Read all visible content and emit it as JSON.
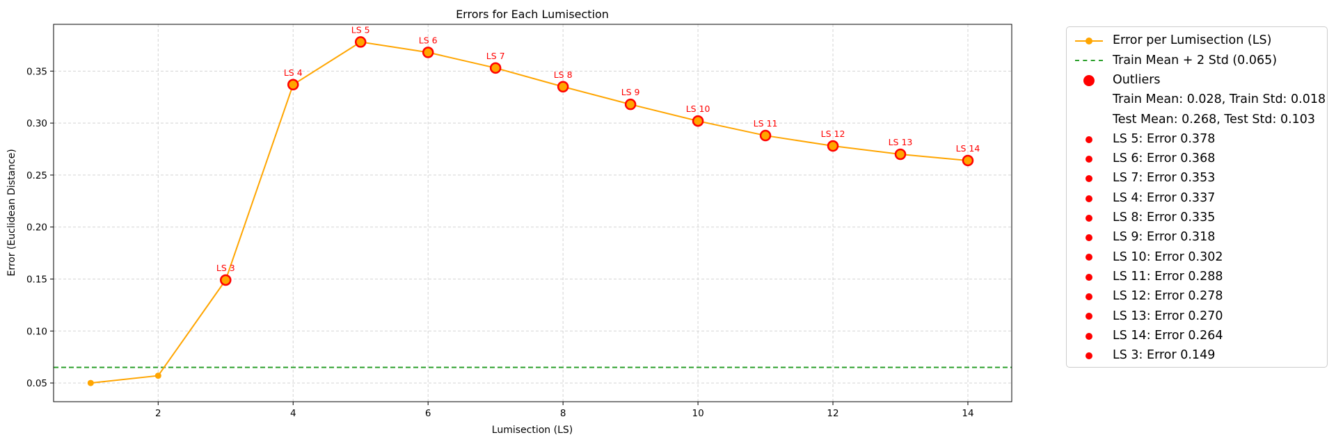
{
  "colors": {
    "line": "#ffa500",
    "outlier": "#ff0000",
    "threshold": "#2ca02c",
    "grid": "#d3d3d3",
    "annotation": "#ff0000"
  },
  "chart_data": {
    "type": "line",
    "title": "Errors for Each Lumisection",
    "xlabel": "Lumisection (LS)",
    "ylabel": "Error (Euclidean Distance)",
    "xlim": [
      0.45,
      14.65
    ],
    "ylim": [
      0.032,
      0.395
    ],
    "xticks": [
      2,
      4,
      6,
      8,
      10,
      12,
      14
    ],
    "yticks": [
      0.05,
      0.1,
      0.15,
      0.2,
      0.25,
      0.3,
      0.35
    ],
    "ytick_labels": [
      "0.05",
      "0.10",
      "0.15",
      "0.20",
      "0.25",
      "0.30",
      "0.35"
    ],
    "grid": true,
    "legend_position": "outside right, top",
    "series": [
      {
        "name": "Error per Lumisection (LS)",
        "x": [
          1,
          2,
          3,
          4,
          5,
          6,
          7,
          8,
          9,
          10,
          11,
          12,
          13,
          14
        ],
        "y": [
          0.05,
          0.057,
          0.149,
          0.337,
          0.378,
          0.368,
          0.353,
          0.335,
          0.318,
          0.302,
          0.288,
          0.278,
          0.27,
          0.264
        ]
      }
    ],
    "threshold": {
      "name": "Train Mean + 2 Std (0.065)",
      "y": 0.065
    },
    "outliers": {
      "name": "Outliers",
      "x": [
        3,
        4,
        5,
        6,
        7,
        8,
        9,
        10,
        11,
        12,
        13,
        14
      ],
      "y": [
        0.149,
        0.337,
        0.378,
        0.368,
        0.353,
        0.335,
        0.318,
        0.302,
        0.288,
        0.278,
        0.27,
        0.264
      ],
      "labels": [
        "LS 3",
        "LS 4",
        "LS 5",
        "LS 6",
        "LS 7",
        "LS 8",
        "LS 9",
        "LS 10",
        "LS 11",
        "LS 12",
        "LS 13",
        "LS 14"
      ]
    },
    "legend": {
      "stats": [
        "Train Mean: 0.028, Train Std: 0.018",
        "Test Mean: 0.268, Test Std: 0.103"
      ],
      "outlier_entries": [
        "LS 5: Error 0.378",
        "LS 6: Error 0.368",
        "LS 7: Error 0.353",
        "LS 4: Error 0.337",
        "LS 8: Error 0.335",
        "LS 9: Error 0.318",
        "LS 10: Error 0.302",
        "LS 11: Error 0.288",
        "LS 12: Error 0.278",
        "LS 13: Error 0.270",
        "LS 14: Error 0.264",
        "LS 3: Error 0.149"
      ]
    }
  }
}
